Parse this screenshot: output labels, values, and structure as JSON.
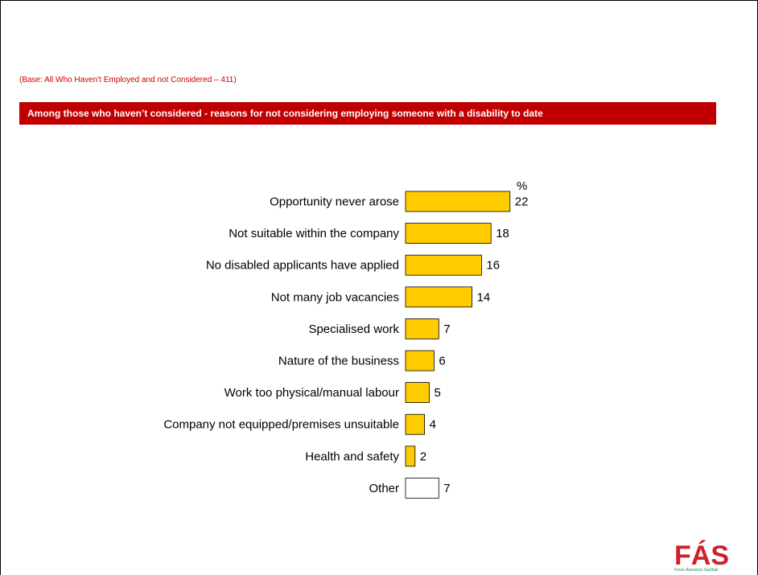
{
  "base_note": "(Base: All Who Haven't Employed and not Considered – 411)",
  "header": {
    "title": "Among those who haven’t considered - reasons for not considering employing someone with a disability to date"
  },
  "chart_data": {
    "type": "bar",
    "orientation": "horizontal",
    "unit": "%",
    "categories": [
      "Opportunity never arose",
      "Not suitable within the company",
      "No disabled applicants have applied",
      "Not many job vacancies",
      "Specialised work",
      "Nature of the business",
      "Work too physical/manual labour",
      "Company not equipped/premises unsuitable",
      "Health and safety",
      "Other"
    ],
    "values": [
      22,
      18,
      16,
      14,
      7,
      6,
      5,
      4,
      2,
      7
    ],
    "colors": [
      "#ffcc00",
      "#ffcc00",
      "#ffcc00",
      "#ffcc00",
      "#ffcc00",
      "#ffcc00",
      "#ffcc00",
      "#ffcc00",
      "#ffcc00",
      "#ffffff"
    ],
    "grid": false,
    "legend": "none"
  },
  "logo": {
    "wordmark": "FÁS",
    "tagline": "Foras Áiseanna Saothair",
    "colors": {
      "red": "#d0202a",
      "green": "#1a8a3a"
    }
  }
}
